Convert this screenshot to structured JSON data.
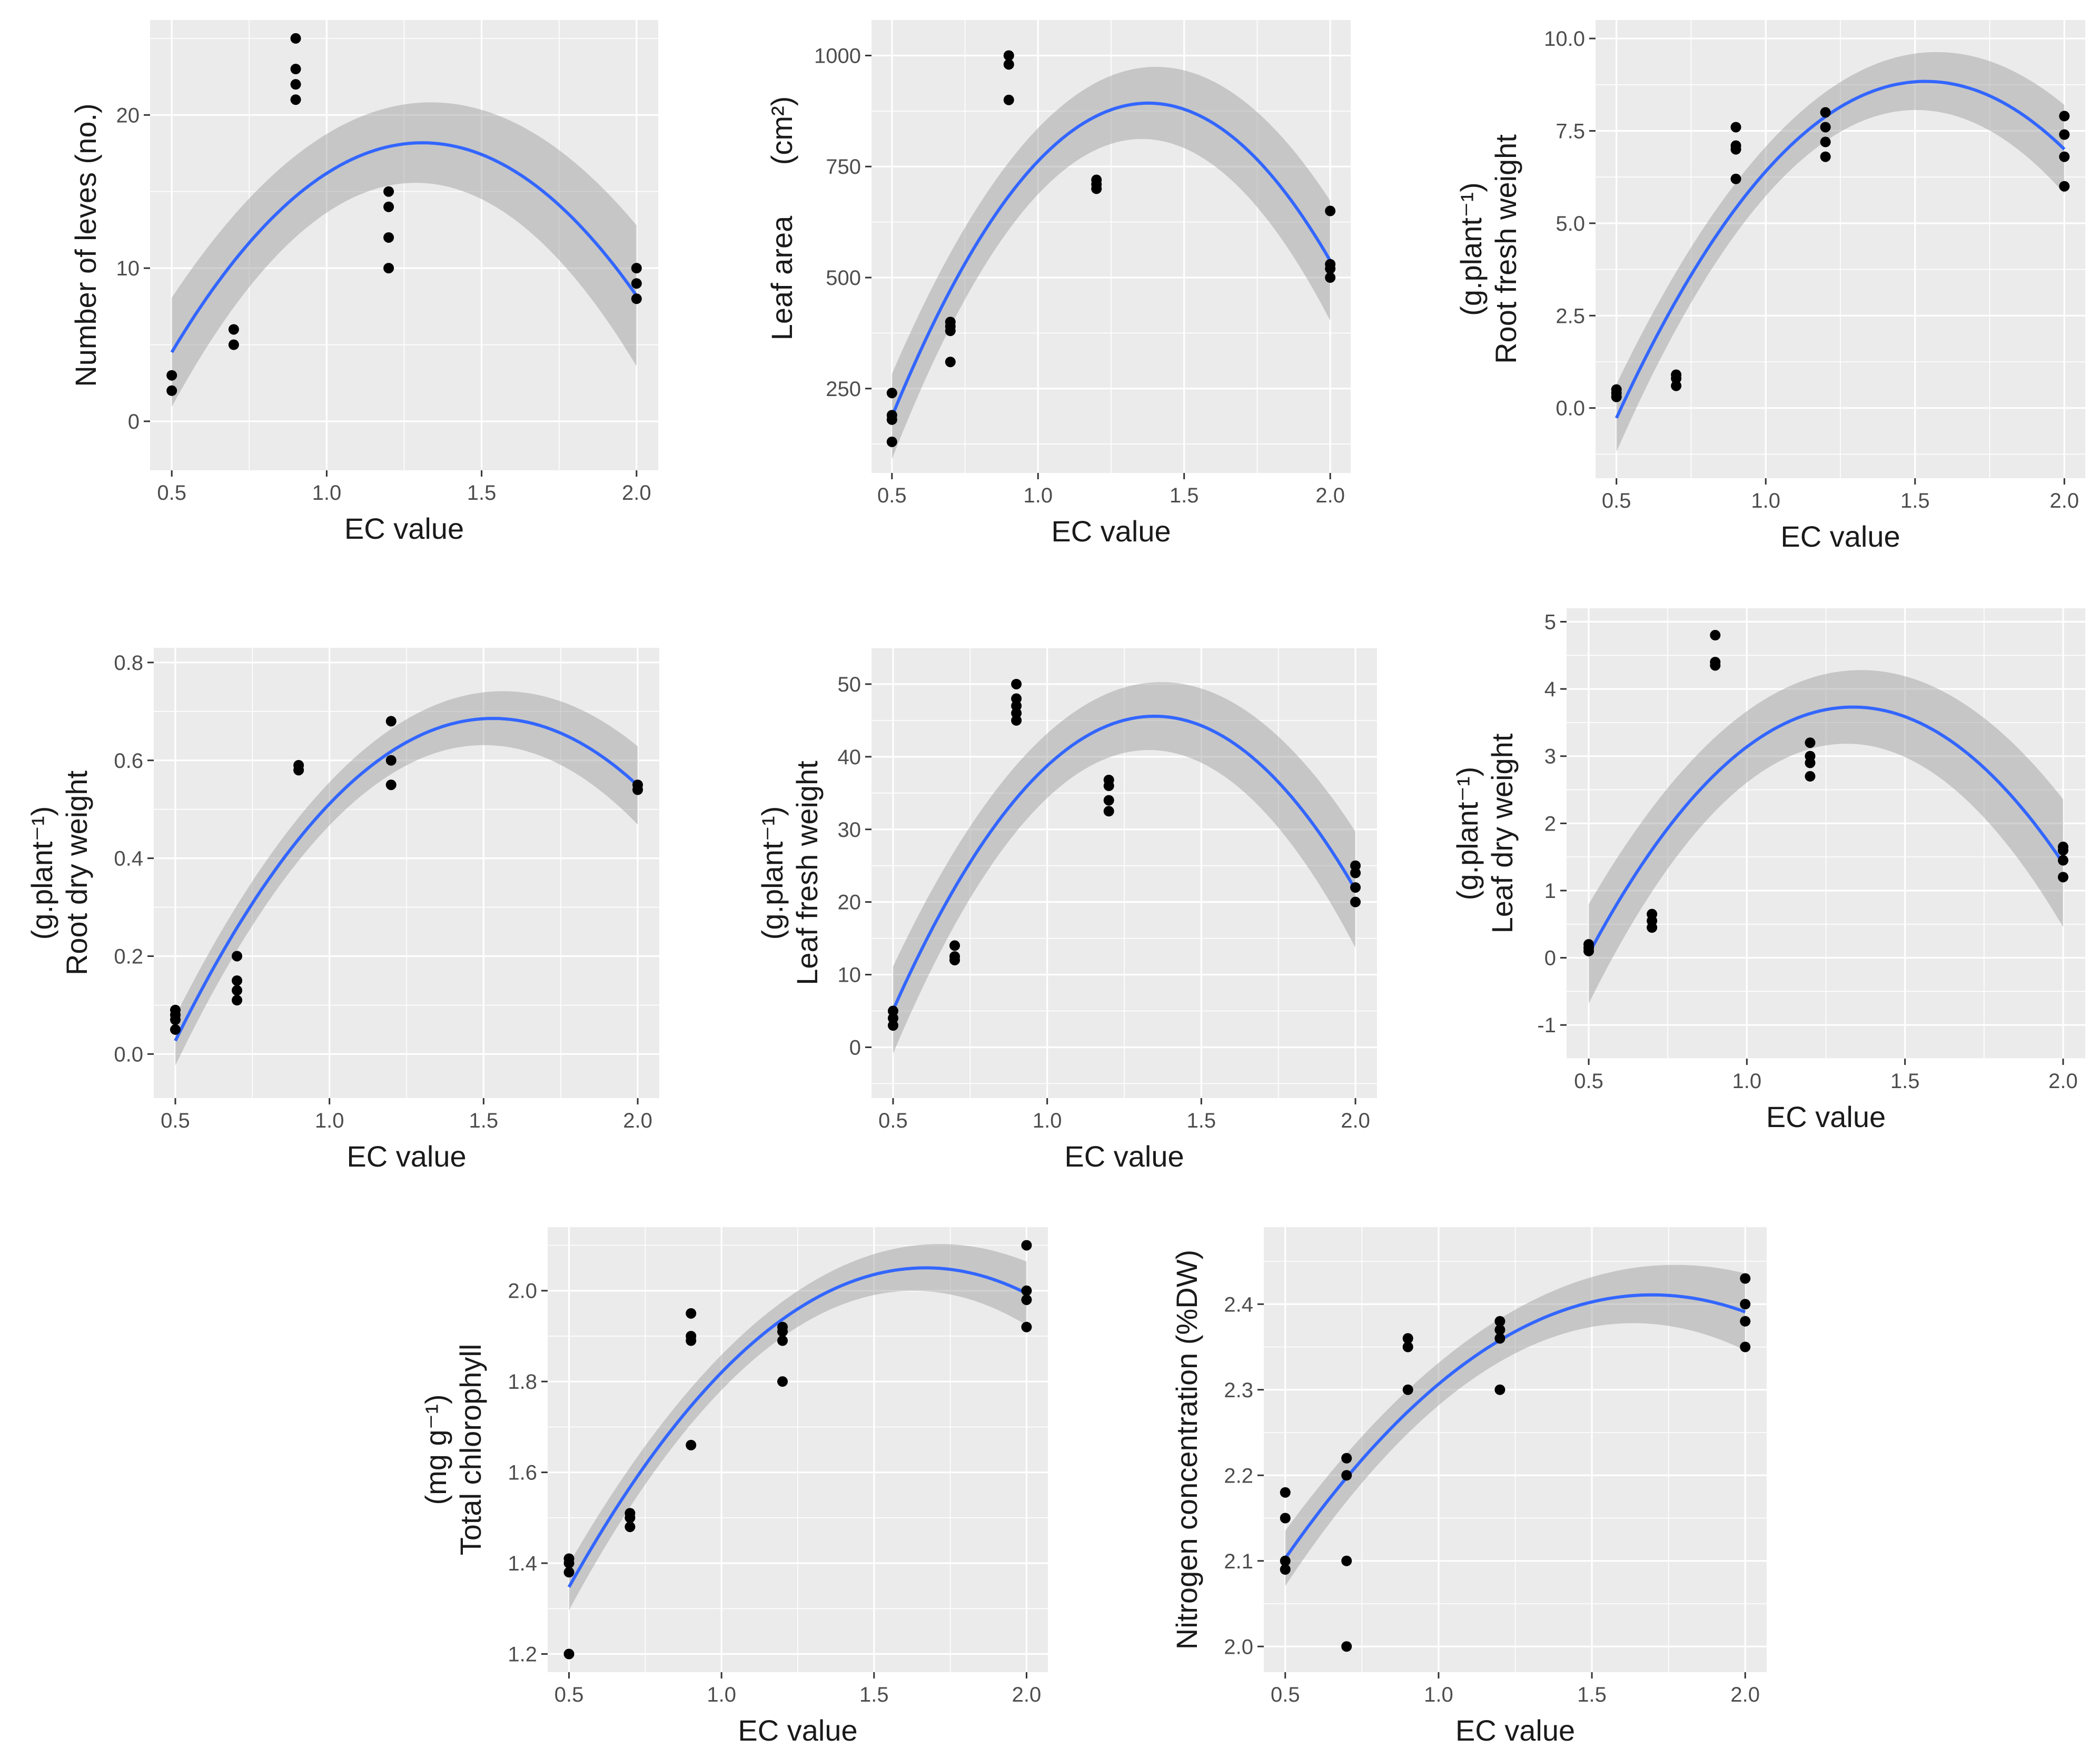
{
  "chart_data": [
    {
      "type": "scatter",
      "id": "leaves",
      "xlabel": "EC value",
      "ylabel": "Number of leves (no.)",
      "ylabel_unit": "",
      "xlim": [
        0.43,
        2.07
      ],
      "ylim": [
        -3.2,
        26.2
      ],
      "xticks": [
        "0.5",
        "1.0",
        "1.5",
        "2.0"
      ],
      "yticks": [
        "0",
        "10",
        "20"
      ],
      "ci_width": 4.6,
      "points": [
        [
          0.5,
          2
        ],
        [
          0.5,
          3
        ],
        [
          0.7,
          5
        ],
        [
          0.7,
          6
        ],
        [
          0.9,
          21
        ],
        [
          0.9,
          22
        ],
        [
          0.9,
          23
        ],
        [
          0.9,
          25
        ],
        [
          1.2,
          10
        ],
        [
          1.2,
          12
        ],
        [
          1.2,
          14
        ],
        [
          1.2,
          15
        ],
        [
          2.0,
          8
        ],
        [
          2.0,
          9
        ],
        [
          2.0,
          10
        ]
      ]
    },
    {
      "type": "scatter",
      "id": "leaf-area",
      "xlabel": "EC value",
      "ylabel": "Leaf area",
      "ylabel_unit": "(cm²)",
      "xlim": [
        0.43,
        2.07
      ],
      "ylim": [
        60,
        1080
      ],
      "xticks": [
        "0.5",
        "1.0",
        "1.5",
        "2.0"
      ],
      "yticks": [
        "250",
        "500",
        "750",
        "1000"
      ],
      "ci_width": 135,
      "points": [
        [
          0.5,
          130
        ],
        [
          0.5,
          180
        ],
        [
          0.5,
          190
        ],
        [
          0.5,
          240
        ],
        [
          0.7,
          310
        ],
        [
          0.7,
          380
        ],
        [
          0.7,
          390
        ],
        [
          0.7,
          400
        ],
        [
          0.9,
          900
        ],
        [
          0.9,
          980
        ],
        [
          0.9,
          1000
        ],
        [
          1.2,
          700
        ],
        [
          1.2,
          710
        ],
        [
          1.2,
          720
        ],
        [
          2.0,
          500
        ],
        [
          2.0,
          520
        ],
        [
          2.0,
          530
        ],
        [
          2.0,
          650
        ]
      ]
    },
    {
      "type": "scatter",
      "id": "root-fresh",
      "xlabel": "EC value",
      "ylabel": "Root fresh weight",
      "ylabel_unit": "(g.plant⁻¹)",
      "xlim": [
        0.43,
        2.07
      ],
      "ylim": [
        -1.9,
        10.5
      ],
      "xticks": [
        "0.5",
        "1.0",
        "1.5",
        "2.0"
      ],
      "yticks": [
        "0.0",
        "2.5",
        "5.0",
        "7.5",
        "10.0"
      ],
      "ci_width": 1.2,
      "points": [
        [
          0.5,
          0.3
        ],
        [
          0.5,
          0.4
        ],
        [
          0.5,
          0.5
        ],
        [
          0.7,
          0.6
        ],
        [
          0.7,
          0.8
        ],
        [
          0.7,
          0.9
        ],
        [
          0.9,
          6.2
        ],
        [
          0.9,
          7.0
        ],
        [
          0.9,
          7.1
        ],
        [
          0.9,
          7.6
        ],
        [
          1.2,
          6.8
        ],
        [
          1.2,
          7.2
        ],
        [
          1.2,
          7.6
        ],
        [
          1.2,
          8.0
        ],
        [
          2.0,
          6.0
        ],
        [
          2.0,
          6.8
        ],
        [
          2.0,
          7.4
        ],
        [
          2.0,
          7.9
        ]
      ]
    },
    {
      "type": "scatter",
      "id": "root-dry",
      "xlabel": "EC value",
      "ylabel": "Root dry weight",
      "ylabel_unit": "(g.plant⁻¹)",
      "xlim": [
        0.43,
        2.07
      ],
      "ylim": [
        -0.09,
        0.83
      ],
      "xticks": [
        "0.5",
        "1.0",
        "1.5",
        "2.0"
      ],
      "yticks": [
        "0.0",
        "0.2",
        "0.4",
        "0.6",
        "0.8"
      ],
      "ci_width": 0.08,
      "points": [
        [
          0.5,
          0.05
        ],
        [
          0.5,
          0.07
        ],
        [
          0.5,
          0.08
        ],
        [
          0.5,
          0.09
        ],
        [
          0.7,
          0.11
        ],
        [
          0.7,
          0.13
        ],
        [
          0.7,
          0.15
        ],
        [
          0.7,
          0.2
        ],
        [
          0.9,
          0.58
        ],
        [
          0.9,
          0.59
        ],
        [
          1.2,
          0.55
        ],
        [
          1.2,
          0.6
        ],
        [
          1.2,
          0.68
        ],
        [
          2.0,
          0.54
        ],
        [
          2.0,
          0.55
        ]
      ]
    },
    {
      "type": "scatter",
      "id": "leaf-fresh",
      "xlabel": "EC value",
      "ylabel": "Leaf fresh weight",
      "ylabel_unit": "(g.plant⁻¹)",
      "xlim": [
        0.43,
        2.07
      ],
      "ylim": [
        -7,
        55
      ],
      "xticks": [
        "0.5",
        "1.0",
        "1.5",
        "2.0"
      ],
      "yticks": [
        "0",
        "10",
        "20",
        "30",
        "40",
        "50"
      ],
      "ci_width": 8,
      "points": [
        [
          0.5,
          3
        ],
        [
          0.5,
          4
        ],
        [
          0.5,
          5
        ],
        [
          0.7,
          12
        ],
        [
          0.7,
          12.5
        ],
        [
          0.7,
          14
        ],
        [
          0.9,
          45
        ],
        [
          0.9,
          46
        ],
        [
          0.9,
          47
        ],
        [
          0.9,
          48
        ],
        [
          0.9,
          50
        ],
        [
          1.2,
          32.5
        ],
        [
          1.2,
          34
        ],
        [
          1.2,
          36
        ],
        [
          1.2,
          36.8
        ],
        [
          2.0,
          20
        ],
        [
          2.0,
          22
        ],
        [
          2.0,
          24
        ],
        [
          2.0,
          25
        ]
      ]
    },
    {
      "type": "scatter",
      "id": "leaf-dry",
      "xlabel": "EC value",
      "ylabel": "Leaf dry weight",
      "ylabel_unit": "(g.plant⁻¹)",
      "xlim": [
        0.43,
        2.07
      ],
      "ylim": [
        -1.5,
        5.2
      ],
      "xticks": [
        "0.5",
        "1.0",
        "1.5",
        "2.0"
      ],
      "yticks": [
        "-1",
        "0",
        "1",
        "2",
        "3",
        "4",
        "5"
      ],
      "ci_width": 0.95,
      "points": [
        [
          0.5,
          0.1
        ],
        [
          0.5,
          0.15
        ],
        [
          0.5,
          0.2
        ],
        [
          0.7,
          0.45
        ],
        [
          0.7,
          0.55
        ],
        [
          0.7,
          0.65
        ],
        [
          0.9,
          4.35
        ],
        [
          0.9,
          4.4
        ],
        [
          0.9,
          4.8
        ],
        [
          1.2,
          2.7
        ],
        [
          1.2,
          2.9
        ],
        [
          1.2,
          3.0
        ],
        [
          1.2,
          3.2
        ],
        [
          2.0,
          1.2
        ],
        [
          2.0,
          1.45
        ],
        [
          2.0,
          1.6
        ],
        [
          2.0,
          1.65
        ]
      ]
    },
    {
      "type": "scatter",
      "id": "chlorophyll",
      "xlabel": "EC value",
      "ylabel": "Total chlorophyll",
      "ylabel_unit": "(mg g⁻¹)",
      "xlim": [
        0.43,
        2.07
      ],
      "ylim": [
        1.16,
        2.14
      ],
      "xticks": [
        "0.5",
        "1.0",
        "1.5",
        "2.0"
      ],
      "yticks": [
        "1.2",
        "1.4",
        "1.6",
        "1.8",
        "2.0"
      ],
      "ci_width": 0.07,
      "points": [
        [
          0.5,
          1.2
        ],
        [
          0.5,
          1.38
        ],
        [
          0.5,
          1.4
        ],
        [
          0.5,
          1.41
        ],
        [
          0.7,
          1.48
        ],
        [
          0.7,
          1.5
        ],
        [
          0.7,
          1.51
        ],
        [
          0.9,
          1.66
        ],
        [
          0.9,
          1.89
        ],
        [
          0.9,
          1.9
        ],
        [
          0.9,
          1.95
        ],
        [
          1.2,
          1.8
        ],
        [
          1.2,
          1.89
        ],
        [
          1.2,
          1.91
        ],
        [
          1.2,
          1.92
        ],
        [
          2.0,
          1.92
        ],
        [
          2.0,
          1.98
        ],
        [
          2.0,
          2.0
        ],
        [
          2.0,
          2.1
        ]
      ]
    },
    {
      "type": "scatter",
      "id": "nitrogen",
      "xlabel": "EC value",
      "ylabel": "Nitrogen concentration (%DW)",
      "ylabel_unit": "",
      "xlim": [
        0.43,
        2.07
      ],
      "ylim": [
        1.97,
        2.49
      ],
      "xticks": [
        "0.5",
        "1.0",
        "1.5",
        "2.0"
      ],
      "yticks": [
        "2.0",
        "2.1",
        "2.2",
        "2.3",
        "2.4"
      ],
      "ci_width": 0.045,
      "points": [
        [
          0.5,
          2.09
        ],
        [
          0.5,
          2.1
        ],
        [
          0.5,
          2.15
        ],
        [
          0.5,
          2.18
        ],
        [
          0.7,
          2.0
        ],
        [
          0.7,
          2.1
        ],
        [
          0.7,
          2.2
        ],
        [
          0.7,
          2.22
        ],
        [
          0.9,
          2.3
        ],
        [
          0.9,
          2.35
        ],
        [
          0.9,
          2.36
        ],
        [
          1.2,
          2.3
        ],
        [
          1.2,
          2.36
        ],
        [
          1.2,
          2.37
        ],
        [
          1.2,
          2.38
        ],
        [
          2.0,
          2.35
        ],
        [
          2.0,
          2.38
        ],
        [
          2.0,
          2.4
        ],
        [
          2.0,
          2.43
        ]
      ]
    }
  ]
}
